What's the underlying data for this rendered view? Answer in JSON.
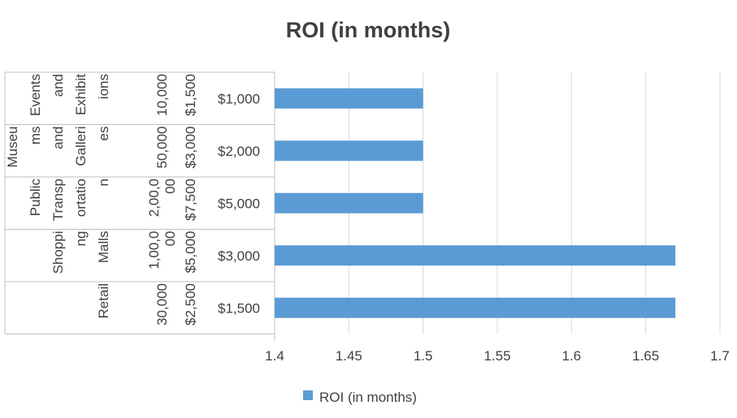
{
  "chart_data": {
    "type": "bar",
    "orientation": "horizontal",
    "title": "ROI (in months)",
    "xlim": [
      1.4,
      1.7
    ],
    "xticks": [
      "1.4",
      "1.45",
      "1.5",
      "1.55",
      "1.6",
      "1.65",
      "1.7"
    ],
    "grid": true,
    "legend_position": "bottom",
    "bar_color": "#5b9bd5",
    "category_levels": [
      [
        "$1,000",
        "$2,000",
        "$5,000",
        "$3,000",
        "$1,500"
      ],
      [
        "$1,500",
        "$3,000",
        "$7,500",
        "$5,000",
        "$2,500"
      ],
      [
        "10,000",
        "50,000",
        "2,00,000",
        "1,00,000",
        "30,000"
      ],
      [
        "Events and Exhibitions",
        "Museums and Galleries",
        "Public Transportation",
        "Shopping Malls",
        "Retail"
      ]
    ],
    "category_level_wrapped": [
      null,
      null,
      [
        [
          "10,000"
        ],
        [
          "50,000"
        ],
        [
          "2,00,0",
          "00"
        ],
        [
          "1,00,0",
          "00"
        ],
        [
          "30,000"
        ]
      ],
      [
        [
          "Events",
          "and",
          "Exhibit",
          "ions"
        ],
        [
          "Museu",
          "ms",
          "and",
          "Galleri",
          "es"
        ],
        [
          "Public",
          "Transp",
          "ortatio",
          "n"
        ],
        [
          "Shoppi",
          "ng",
          "Malls"
        ],
        [
          "Retail"
        ]
      ]
    ],
    "series": [
      {
        "name": "ROI (in months)",
        "values": [
          1.5,
          1.5,
          1.5,
          1.67,
          1.67
        ]
      }
    ]
  }
}
